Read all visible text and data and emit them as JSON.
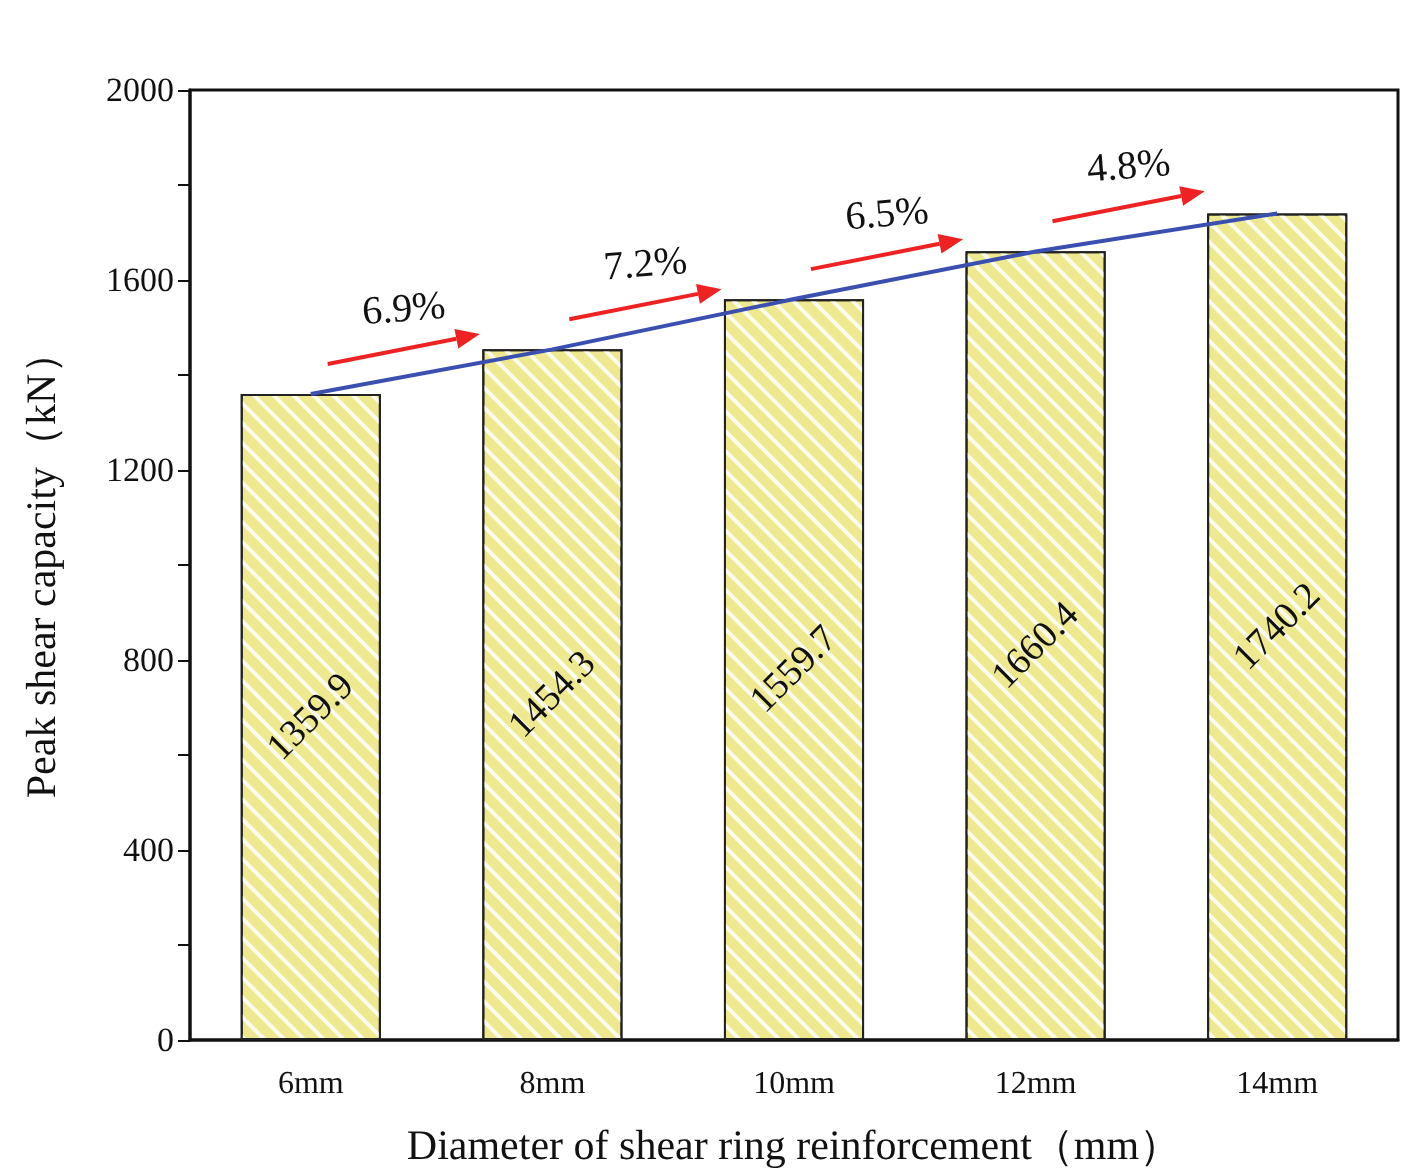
{
  "chart_data": {
    "type": "bar",
    "xlabel": "Diameter of shear ring reinforcement（mm）",
    "ylabel": "Peak shear capacity（kN）",
    "categories": [
      "6mm",
      "8mm",
      "10mm",
      "12mm",
      "14mm"
    ],
    "series": [
      {
        "color": "#eee88e",
        "values": [
          1359.9,
          1454.3,
          1559.7,
          1660.4,
          1740.2
        ],
        "value_labels": [
          "1359.9",
          "1454.3",
          "1559.7",
          "1660.4",
          "1740.2"
        ]
      },
      {
        "type": "line",
        "color": "#3a4fb0",
        "values": [
          1360,
          1454,
          1560,
          1660,
          1740
        ]
      }
    ],
    "annotations": [
      "6.9%",
      "7.2%",
      "6.5%",
      "4.8%"
    ],
    "ylim": [
      0,
      2000
    ],
    "yticks": [
      0,
      {
        "value": 200,
        "label": null
      },
      400,
      {
        "value": 600,
        "label": null
      },
      800,
      {
        "value": 1000,
        "label": null
      },
      1200,
      {
        "value": 1400,
        "label": null
      },
      1600,
      {
        "value": 1800,
        "label": null
      },
      2000
    ],
    "grid": false,
    "marker": "none",
    "line_style": "solid"
  }
}
